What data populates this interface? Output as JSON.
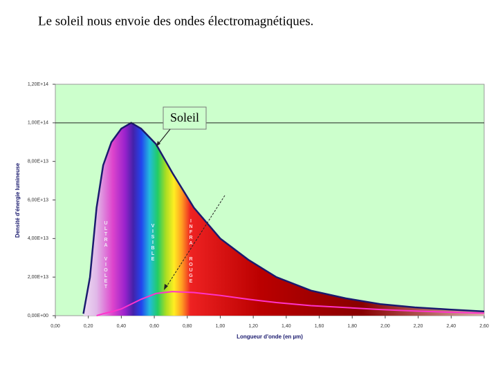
{
  "title": "Le soleil nous envoie des ondes électromagnétiques.",
  "chart_data": {
    "type": "line",
    "x_label": "Longueur d'onde (en µm)",
    "y_label": "Densité d'énergie lumineuse",
    "annotations": [
      "Soleil",
      "ULTRA",
      "VIOLET",
      "VISIBLE",
      "INFRA",
      "ROUGE"
    ],
    "x": [
      0.17,
      0.21,
      0.25,
      0.29,
      0.34,
      0.4,
      0.46,
      0.52,
      0.61,
      0.71,
      0.84,
      1.0,
      1.17,
      1.34,
      1.55,
      1.76,
      1.97,
      2.18,
      2.39,
      2.6
    ],
    "series": [
      {
        "name": "Soleil",
        "color": "#1a1a6e",
        "values": [
          1000000000000,
          20000000000000,
          56000000000000,
          78000000000000,
          90000000000000,
          97000000000000,
          100000000000000,
          97000000000000,
          89000000000000,
          74000000000000,
          56000000000000,
          40000000000000,
          29000000000000,
          20000000000000,
          13000000000000,
          9000000000000,
          6000000000000,
          4300000000000,
          3200000000000,
          2200000000000
        ]
      },
      {
        "color": "#ff33cc",
        "values": [
          null,
          null,
          0,
          1000000000000,
          2000000000000,
          3500000000000,
          6000000000000,
          8500000000000,
          11500000000000,
          12500000000000,
          12000000000000,
          10500000000000,
          8500000000000,
          6800000000000,
          5200000000000,
          4200000000000,
          3200000000000,
          2400000000000,
          1800000000000,
          1300000000000
        ]
      }
    ],
    "xlim": [
      0,
      2.6
    ],
    "xticks": [
      {
        "value": 0,
        "label": "0,00"
      },
      {
        "value": 0.2,
        "label": "0,20"
      },
      {
        "value": 0.4,
        "label": "0,40"
      },
      {
        "value": 0.6,
        "label": "0,60"
      },
      {
        "value": 0.8,
        "label": "0,80"
      },
      {
        "value": 1.0,
        "label": "1,00"
      },
      {
        "value": 1.2,
        "label": "1,20"
      },
      {
        "value": 1.4,
        "label": "1,40"
      },
      {
        "value": 1.6,
        "label": "1,60"
      },
      {
        "value": 1.8,
        "label": "1,80"
      },
      {
        "value": 2.0,
        "label": "2,00"
      },
      {
        "value": 2.2,
        "label": "2,20"
      },
      {
        "value": 2.4,
        "label": "2,40"
      },
      {
        "value": 2.6,
        "label": "2,60"
      }
    ],
    "ylim": [
      0,
      120000000000000
    ],
    "yticks": [
      {
        "value": 0,
        "label": "0,00E+00"
      },
      {
        "value": 20000000000000,
        "label": "2,00E+13"
      },
      {
        "value": 40000000000000,
        "label": "4,00E+13"
      },
      {
        "value": 60000000000000,
        "label": "6,00E+13"
      },
      {
        "value": 80000000000000,
        "label": "8,00E+13"
      },
      {
        "value": 100000000000000,
        "label": "1,00E+14"
      },
      {
        "value": 120000000000000,
        "label": "1,20E+14"
      }
    ]
  }
}
